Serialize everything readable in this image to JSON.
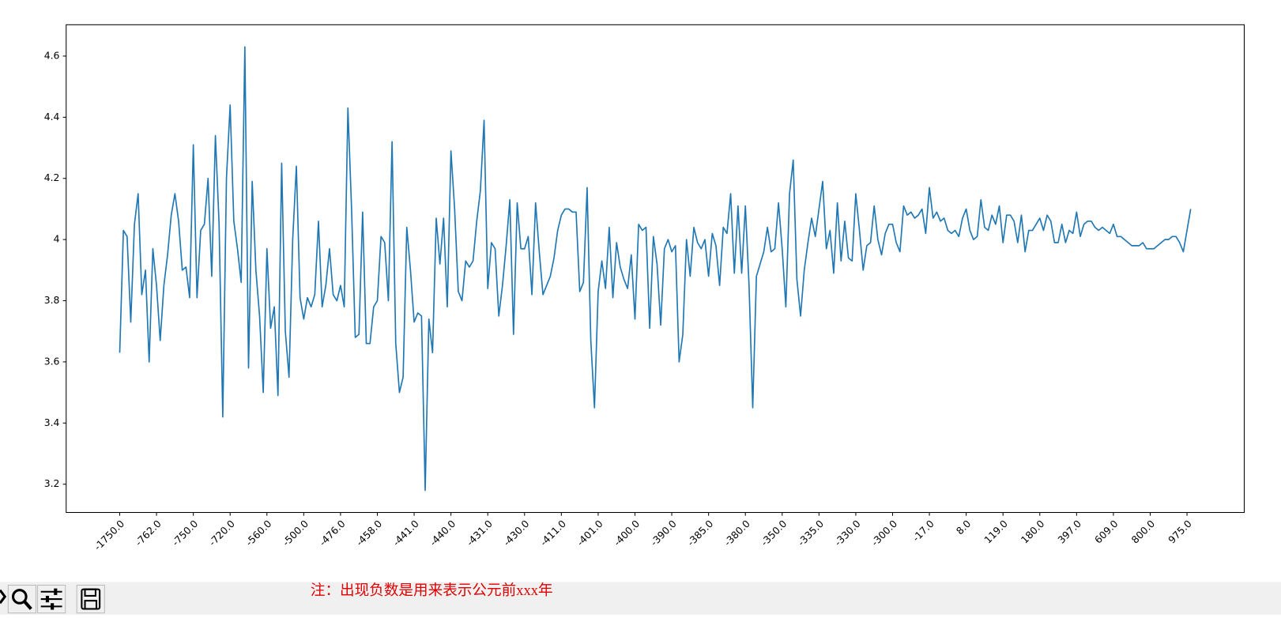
{
  "chart_data": {
    "type": "line",
    "color": "#1f77b4",
    "values": [
      3.63,
      4.03,
      4.01,
      3.73,
      4.05,
      4.15,
      3.82,
      3.9,
      3.6,
      3.97,
      3.85,
      3.67,
      3.85,
      3.95,
      4.08,
      4.15,
      4.06,
      3.9,
      3.91,
      3.81,
      4.31,
      3.81,
      4.03,
      4.05,
      4.2,
      3.88,
      4.34,
      4.05,
      3.42,
      4.2,
      4.44,
      4.06,
      3.97,
      3.86,
      4.63,
      3.58,
      4.19,
      3.9,
      3.75,
      3.5,
      3.97,
      3.71,
      3.78,
      3.49,
      4.25,
      3.7,
      3.55,
      4.0,
      4.24,
      3.81,
      3.74,
      3.81,
      3.78,
      3.82,
      4.06,
      3.78,
      3.85,
      3.97,
      3.82,
      3.8,
      3.85,
      3.78,
      4.43,
      4.1,
      3.68,
      3.69,
      4.09,
      3.66,
      3.66,
      3.78,
      3.8,
      4.01,
      3.99,
      3.8,
      4.32,
      3.66,
      3.5,
      3.55,
      4.04,
      3.9,
      3.73,
      3.76,
      3.75,
      3.18,
      3.74,
      3.63,
      4.07,
      3.92,
      4.07,
      3.78,
      4.29,
      4.1,
      3.83,
      3.8,
      3.93,
      3.91,
      3.93,
      4.06,
      4.16,
      4.39,
      3.84,
      3.99,
      3.97,
      3.75,
      3.85,
      3.98,
      4.13,
      3.69,
      4.12,
      3.97,
      3.97,
      4.01,
      3.82,
      4.12,
      3.96,
      3.82,
      3.85,
      3.88,
      3.94,
      4.03,
      4.08,
      4.1,
      4.1,
      4.09,
      4.09,
      3.83,
      3.86,
      4.17,
      3.67,
      3.45,
      3.83,
      3.93,
      3.84,
      4.04,
      3.81,
      3.99,
      3.91,
      3.87,
      3.84,
      3.95,
      3.74,
      4.05,
      4.03,
      4.04,
      3.71,
      4.01,
      3.92,
      3.72,
      3.97,
      4.0,
      3.96,
      3.98,
      3.6,
      3.69,
      4.0,
      3.88,
      4.04,
      3.99,
      3.97,
      4.0,
      3.88,
      4.02,
      3.98,
      3.85,
      4.04,
      4.02,
      4.15,
      3.89,
      4.11,
      3.89,
      4.11,
      3.85,
      3.45,
      3.88,
      3.92,
      3.96,
      4.04,
      3.96,
      3.97,
      4.12,
      3.97,
      3.78,
      4.15,
      4.26,
      3.87,
      3.75,
      3.9,
      3.99,
      4.07,
      4.01,
      4.1,
      4.19,
      3.97,
      4.03,
      3.89,
      4.12,
      3.93,
      4.06,
      3.94,
      3.93,
      4.15,
      4.03,
      3.9,
      3.98,
      3.99,
      4.11,
      4.0,
      3.95,
      4.02,
      4.05,
      4.05,
      3.99,
      3.96,
      4.11,
      4.08,
      4.09,
      4.07,
      4.08,
      4.1,
      4.02,
      4.17,
      4.07,
      4.09,
      4.06,
      4.07,
      4.03,
      4.02,
      4.03,
      4.01,
      4.07,
      4.1,
      4.03,
      4.0,
      4.01,
      4.13,
      4.04,
      4.03,
      4.08,
      4.05,
      4.11,
      3.99,
      4.08,
      4.08,
      4.06,
      3.99,
      4.08,
      3.96,
      4.03,
      4.03,
      4.05,
      4.07,
      4.03,
      4.08,
      4.06,
      3.99,
      3.99,
      4.05,
      3.99,
      4.03,
      4.02,
      4.09,
      4.01,
      4.05,
      4.06,
      4.06,
      4.04,
      4.03,
      4.04,
      4.03,
      4.02,
      4.05,
      4.01,
      4.01,
      4.0,
      3.99,
      3.98,
      3.98,
      3.98,
      3.99,
      3.97,
      3.97,
      3.97,
      3.98,
      3.99,
      4.0,
      4.0,
      4.01,
      4.01,
      3.99,
      3.96,
      4.03,
      4.1
    ],
    "xlim": [
      -14.55,
      305.55
    ],
    "xticks": [
      {
        "value": 0,
        "label": "-1750.0"
      },
      {
        "value": 10,
        "label": "-762.0"
      },
      {
        "value": 20,
        "label": "-750.0"
      },
      {
        "value": 30,
        "label": "-720.0"
      },
      {
        "value": 40,
        "label": "-560.0"
      },
      {
        "value": 50,
        "label": "-500.0"
      },
      {
        "value": 60,
        "label": "-476.0"
      },
      {
        "value": 70,
        "label": "-458.0"
      },
      {
        "value": 80,
        "label": "-441.0"
      },
      {
        "value": 90,
        "label": "-440.0"
      },
      {
        "value": 100,
        "label": "-431.0"
      },
      {
        "value": 110,
        "label": "-430.0"
      },
      {
        "value": 120,
        "label": "-411.0"
      },
      {
        "value": 130,
        "label": "-401.0"
      },
      {
        "value": 140,
        "label": "-400.0"
      },
      {
        "value": 150,
        "label": "-390.0"
      },
      {
        "value": 160,
        "label": "-385.0"
      },
      {
        "value": 170,
        "label": "-380.0"
      },
      {
        "value": 180,
        "label": "-350.0"
      },
      {
        "value": 190,
        "label": "-335.0"
      },
      {
        "value": 200,
        "label": "-330.0"
      },
      {
        "value": 210,
        "label": "-300.0"
      },
      {
        "value": 220,
        "label": "-17.0"
      },
      {
        "value": 230,
        "label": "8.0"
      },
      {
        "value": 240,
        "label": "119.0"
      },
      {
        "value": 250,
        "label": "180.0"
      },
      {
        "value": 260,
        "label": "397.0"
      },
      {
        "value": 270,
        "label": "609.0"
      },
      {
        "value": 280,
        "label": "800.0"
      },
      {
        "value": 290,
        "label": "975.0"
      }
    ],
    "ylim": [
      3.1075,
      4.7025
    ],
    "yticks": [
      3.2,
      3.4,
      3.6,
      3.8,
      4.0,
      4.2,
      4.4,
      4.6
    ]
  },
  "toolbar": {
    "note": "注：出现负数是用来表示公元前xxx年"
  }
}
